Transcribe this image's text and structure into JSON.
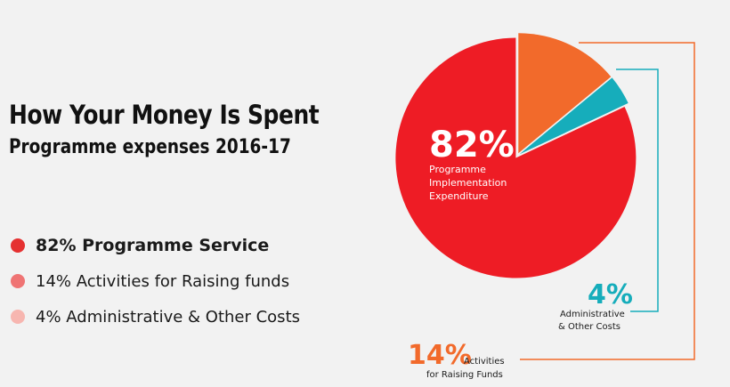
{
  "header": {
    "title": "How Your Money Is Spent",
    "subtitle": "Programme expenses 2016-17"
  },
  "legend": [
    {
      "label": "82% Programme Service",
      "color": "#e53131",
      "bold": true
    },
    {
      "label": "14% Activities for Raising funds",
      "color": "#ef7474",
      "bold": false
    },
    {
      "label": "4% Administrative & Other Costs",
      "color": "#f7b6b0",
      "bold": false
    }
  ],
  "chart_data": {
    "type": "pie",
    "slices": [
      {
        "label": "Programme Implementation Expenditure",
        "value": 82,
        "value_label": "82%",
        "label_lines": [
          "Programme",
          "Implementation",
          "Expenditure"
        ],
        "color": "#ee1c25"
      },
      {
        "label": "Activities for Raising Funds",
        "value": 14,
        "value_label": "14%",
        "label_lines": [
          "Activities",
          "for Raising Funds"
        ],
        "color": "#f26a2b"
      },
      {
        "label": "Administrative & Other Costs",
        "value": 4,
        "value_label": "4%",
        "label_lines": [
          "Administrative",
          "& Other Costs"
        ],
        "color": "#16adbb"
      }
    ]
  }
}
